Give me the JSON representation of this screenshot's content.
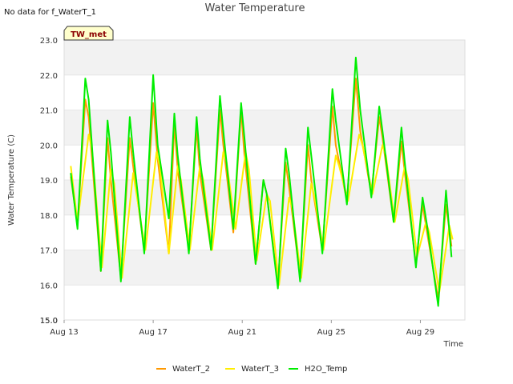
{
  "chart_data": {
    "type": "line",
    "title": "Water Temperature",
    "no_data_note": "No data for f_WaterT_1",
    "badge": "TW_met",
    "xlabel": "Time",
    "ylabel": "Water Temperature (C)",
    "xlim": [
      0,
      18
    ],
    "ylim": [
      15.0,
      23.0
    ],
    "y_ticks": [
      "15.0",
      "15.0",
      "16.0",
      "17.0",
      "18.0",
      "19.0",
      "20.0",
      "21.0",
      "22.0",
      "23.0"
    ],
    "y_tick_values": [
      15.0,
      15.0,
      16.0,
      17.0,
      18.0,
      19.0,
      20.0,
      21.0,
      22.0,
      23.0
    ],
    "x_ticks": [
      {
        "label": "Aug 13",
        "value": 0
      },
      {
        "label": "Aug 17",
        "value": 4
      },
      {
        "label": "Aug 21",
        "value": 8
      },
      {
        "label": "Aug 25",
        "value": 12
      },
      {
        "label": "Aug 29",
        "value": 16
      }
    ],
    "grid": "horizontal bands",
    "legend_position": "bottom",
    "series": [
      {
        "name": "WaterT_2",
        "color": "#ff9900",
        "points": [
          [
            0.3,
            19.1
          ],
          [
            0.6,
            17.7
          ],
          [
            0.95,
            21.3
          ],
          [
            1.1,
            20.8
          ],
          [
            1.65,
            16.4
          ],
          [
            1.95,
            20.2
          ],
          [
            2.1,
            19.0
          ],
          [
            2.55,
            16.2
          ],
          [
            2.95,
            20.2
          ],
          [
            3.1,
            19.4
          ],
          [
            3.6,
            17.0
          ],
          [
            4.0,
            21.2
          ],
          [
            4.2,
            19.6
          ],
          [
            4.7,
            16.9
          ],
          [
            4.95,
            20.6
          ],
          [
            5.1,
            19.3
          ],
          [
            5.6,
            17.0
          ],
          [
            5.95,
            20.5
          ],
          [
            6.1,
            19.2
          ],
          [
            6.6,
            17.0
          ],
          [
            7.0,
            21.0
          ],
          [
            7.15,
            20.0
          ],
          [
            7.6,
            17.5
          ],
          [
            7.95,
            21.0
          ],
          [
            8.1,
            19.7
          ],
          [
            8.6,
            16.6
          ],
          [
            8.95,
            19.0
          ],
          [
            9.1,
            18.6
          ],
          [
            9.6,
            16.0
          ],
          [
            9.95,
            19.5
          ],
          [
            10.1,
            18.8
          ],
          [
            10.6,
            16.2
          ],
          [
            10.95,
            20.0
          ],
          [
            11.1,
            19.0
          ],
          [
            11.6,
            17.0
          ],
          [
            12.05,
            21.1
          ],
          [
            12.2,
            20.0
          ],
          [
            12.7,
            18.4
          ],
          [
            13.1,
            21.9
          ],
          [
            13.3,
            20.4
          ],
          [
            13.8,
            18.6
          ],
          [
            14.15,
            20.8
          ],
          [
            14.3,
            20.2
          ],
          [
            14.8,
            17.8
          ],
          [
            15.15,
            20.1
          ],
          [
            15.3,
            19.2
          ],
          [
            15.8,
            16.6
          ],
          [
            16.1,
            18.3
          ],
          [
            16.3,
            17.5
          ],
          [
            16.8,
            15.6
          ],
          [
            17.15,
            18.3
          ],
          [
            17.4,
            17.1
          ]
        ]
      },
      {
        "name": "WaterT_3",
        "color": "#ffee00",
        "points": [
          [
            0.3,
            19.4
          ],
          [
            0.6,
            17.8
          ],
          [
            1.1,
            20.3
          ],
          [
            1.25,
            19.9
          ],
          [
            1.7,
            16.5
          ],
          [
            2.1,
            19.3
          ],
          [
            2.25,
            18.9
          ],
          [
            2.6,
            16.2
          ],
          [
            3.1,
            19.2
          ],
          [
            3.25,
            18.6
          ],
          [
            3.65,
            17.0
          ],
          [
            4.15,
            19.8
          ],
          [
            4.3,
            19.4
          ],
          [
            4.7,
            16.9
          ],
          [
            5.1,
            19.4
          ],
          [
            5.25,
            19.0
          ],
          [
            5.65,
            17.0
          ],
          [
            6.1,
            19.4
          ],
          [
            6.25,
            19.0
          ],
          [
            6.65,
            17.0
          ],
          [
            7.15,
            19.8
          ],
          [
            7.3,
            19.5
          ],
          [
            7.7,
            17.6
          ],
          [
            8.15,
            19.8
          ],
          [
            8.3,
            19.3
          ],
          [
            8.65,
            16.7
          ],
          [
            9.1,
            18.6
          ],
          [
            9.25,
            18.4
          ],
          [
            9.65,
            16.0
          ],
          [
            10.1,
            18.5
          ],
          [
            10.25,
            18.2
          ],
          [
            10.65,
            16.2
          ],
          [
            11.1,
            18.9
          ],
          [
            11.25,
            18.5
          ],
          [
            11.65,
            17.0
          ],
          [
            12.2,
            19.7
          ],
          [
            12.35,
            19.4
          ],
          [
            12.75,
            18.4
          ],
          [
            13.25,
            20.3
          ],
          [
            13.4,
            20.0
          ],
          [
            13.85,
            18.6
          ],
          [
            14.3,
            20.0
          ],
          [
            14.45,
            19.7
          ],
          [
            14.85,
            17.8
          ],
          [
            15.3,
            19.4
          ],
          [
            15.45,
            19.0
          ],
          [
            15.85,
            16.8
          ],
          [
            16.25,
            17.8
          ],
          [
            16.4,
            17.5
          ],
          [
            16.85,
            15.8
          ],
          [
            17.3,
            17.7
          ],
          [
            17.45,
            17.3
          ]
        ]
      },
      {
        "name": "H2O_Temp",
        "color": "#00ee00",
        "points": [
          [
            0.3,
            19.2
          ],
          [
            0.6,
            17.6
          ],
          [
            0.95,
            21.9
          ],
          [
            1.1,
            21.3
          ],
          [
            1.65,
            16.4
          ],
          [
            1.95,
            20.7
          ],
          [
            2.1,
            19.8
          ],
          [
            2.55,
            16.1
          ],
          [
            2.95,
            20.8
          ],
          [
            3.1,
            19.8
          ],
          [
            3.6,
            16.9
          ],
          [
            4.0,
            22.0
          ],
          [
            4.2,
            20.0
          ],
          [
            4.7,
            17.9
          ],
          [
            4.95,
            20.9
          ],
          [
            5.1,
            19.7
          ],
          [
            5.6,
            16.9
          ],
          [
            5.95,
            20.8
          ],
          [
            6.1,
            19.6
          ],
          [
            6.6,
            17.0
          ],
          [
            7.0,
            21.4
          ],
          [
            7.15,
            20.4
          ],
          [
            7.6,
            17.6
          ],
          [
            7.95,
            21.2
          ],
          [
            8.1,
            20.2
          ],
          [
            8.6,
            16.6
          ],
          [
            8.95,
            19.0
          ],
          [
            9.1,
            18.6
          ],
          [
            9.6,
            15.9
          ],
          [
            9.95,
            19.9
          ],
          [
            10.1,
            19.2
          ],
          [
            10.6,
            16.1
          ],
          [
            10.95,
            20.5
          ],
          [
            11.1,
            19.7
          ],
          [
            11.6,
            16.9
          ],
          [
            12.05,
            21.6
          ],
          [
            12.2,
            20.7
          ],
          [
            12.7,
            18.3
          ],
          [
            13.1,
            22.5
          ],
          [
            13.3,
            21.0
          ],
          [
            13.8,
            18.5
          ],
          [
            14.15,
            21.1
          ],
          [
            14.3,
            20.4
          ],
          [
            14.8,
            17.8
          ],
          [
            15.15,
            20.5
          ],
          [
            15.3,
            19.5
          ],
          [
            15.8,
            16.5
          ],
          [
            16.1,
            18.5
          ],
          [
            16.3,
            17.7
          ],
          [
            16.8,
            15.4
          ],
          [
            17.15,
            18.7
          ],
          [
            17.4,
            16.8
          ]
        ]
      }
    ]
  }
}
